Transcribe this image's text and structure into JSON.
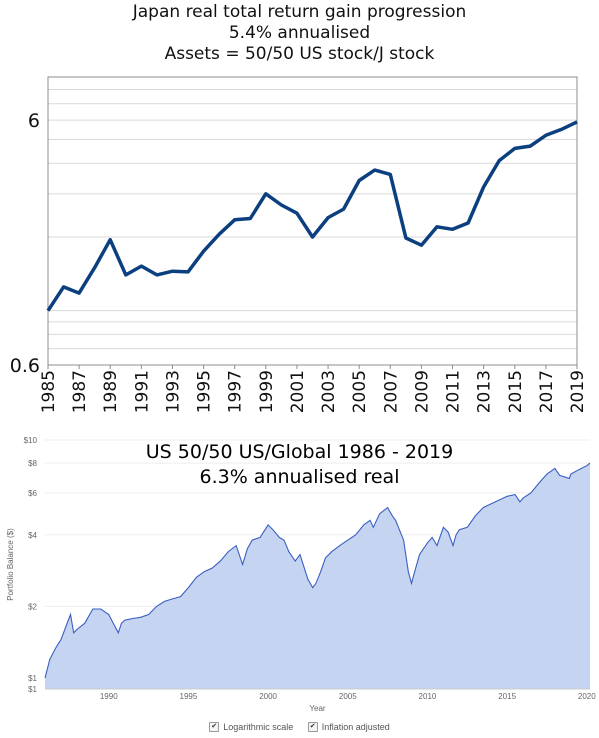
{
  "chart_data": [
    {
      "type": "line",
      "title": "Japan real total return gain progression",
      "subtitle_lines": [
        "5.4% annualised",
        "Assets = 50/50 US stock/J stock"
      ],
      "yscale": "log",
      "ylim": [
        0.6,
        9.0
      ],
      "y_tick_labels": [
        "6",
        "0.6"
      ],
      "y_ticks": [
        6,
        0.6
      ],
      "x_tick_labels": [
        "1985",
        "1987",
        "1989",
        "1991",
        "1993",
        "1995",
        "1997",
        "1999",
        "2001",
        "2003",
        "2005",
        "2007",
        "2009",
        "2011",
        "2013",
        "2015",
        "2017",
        "2019"
      ],
      "grid": true,
      "line_color": "#0b3f7f",
      "x": [
        1985,
        1986,
        1987,
        1988,
        1989,
        1990,
        1991,
        1992,
        1993,
        1994,
        1995,
        1996,
        1997,
        1998,
        1999,
        2000,
        2001,
        2002,
        2003,
        2004,
        2005,
        2006,
        2007,
        2008,
        2009,
        2010,
        2011,
        2012,
        2013,
        2014,
        2015,
        2016,
        2017,
        2018,
        2019
      ],
      "values": [
        1.0,
        1.25,
        1.18,
        1.5,
        1.95,
        1.4,
        1.52,
        1.4,
        1.45,
        1.44,
        1.75,
        2.05,
        2.35,
        2.38,
        3.0,
        2.7,
        2.5,
        2.0,
        2.4,
        2.6,
        3.4,
        3.75,
        3.6,
        1.98,
        1.85,
        2.2,
        2.15,
        2.28,
        3.2,
        4.1,
        4.6,
        4.7,
        5.2,
        5.5,
        5.9
      ]
    },
    {
      "type": "area",
      "title": "US 50/50 US/Global 1986 - 2019",
      "subtitle": "6.3% annualised real",
      "ylabel": "Portfolio Balance ($)",
      "xlabel": "Year",
      "yscale": "log",
      "ylim": [
        0.9,
        10
      ],
      "y_tick_labels": [
        "$10",
        "$8",
        "$6",
        "$4",
        "$2",
        "$1",
        "$1"
      ],
      "y_ticks": [
        10,
        8,
        6,
        4,
        2,
        1,
        0.9
      ],
      "x_tick_labels": [
        "1990",
        "1995",
        "2000",
        "2005",
        "2010",
        "2015",
        "2020"
      ],
      "x_ticks": [
        1990,
        1995,
        2000,
        2005,
        2010,
        2015,
        2020
      ],
      "xlim": [
        1986,
        2020.2
      ],
      "grid": true,
      "line_color": "#3b5fc0",
      "fill_color": "#c5d4f0",
      "x": [
        1986,
        1986.3,
        1986.7,
        1987,
        1987.6,
        1987.8,
        1988,
        1988.5,
        1989,
        1989.5,
        1990,
        1990.6,
        1990.8,
        1991,
        1991.5,
        1992,
        1992.5,
        1993,
        1993.5,
        1994,
        1994.5,
        1995,
        1995.5,
        1996,
        1996.5,
        1997,
        1997.5,
        1998,
        1998.4,
        1998.7,
        1999,
        1999.5,
        2000,
        2000.3,
        2000.7,
        2001,
        2001.3,
        2001.7,
        2002,
        2002.5,
        2002.8,
        2003,
        2003.3,
        2003.6,
        2004,
        2004.5,
        2005,
        2005.5,
        2006,
        2006.4,
        2006.6,
        2007,
        2007.5,
        2007.8,
        2008,
        2008.5,
        2008.8,
        2009,
        2009.2,
        2009.5,
        2010,
        2010.3,
        2010.6,
        2011,
        2011.3,
        2011.6,
        2011.8,
        2012,
        2012.5,
        2013,
        2013.5,
        2014,
        2014.5,
        2015,
        2015.5,
        2015.8,
        2016,
        2016.5,
        2017,
        2017.5,
        2018,
        2018.3,
        2018.9,
        2019,
        2019.5,
        2020,
        2020.2
      ],
      "values": [
        1.0,
        1.2,
        1.35,
        1.45,
        1.85,
        1.55,
        1.6,
        1.7,
        1.95,
        1.95,
        1.85,
        1.55,
        1.7,
        1.75,
        1.78,
        1.8,
        1.85,
        2.0,
        2.1,
        2.15,
        2.2,
        2.4,
        2.65,
        2.8,
        2.9,
        3.1,
        3.4,
        3.6,
        3.0,
        3.5,
        3.8,
        3.9,
        4.4,
        4.2,
        3.9,
        3.8,
        3.4,
        3.1,
        3.3,
        2.6,
        2.4,
        2.5,
        2.8,
        3.2,
        3.4,
        3.6,
        3.8,
        4.0,
        4.4,
        4.6,
        4.3,
        4.9,
        5.2,
        4.8,
        4.6,
        3.8,
        2.8,
        2.5,
        2.8,
        3.3,
        3.7,
        3.9,
        3.6,
        4.3,
        4.1,
        3.6,
        4.0,
        4.2,
        4.3,
        4.8,
        5.2,
        5.4,
        5.6,
        5.8,
        5.9,
        5.5,
        5.7,
        6.0,
        6.6,
        7.2,
        7.6,
        7.1,
        6.9,
        7.2,
        7.5,
        7.8,
        8.0
      ]
    }
  ],
  "controls": {
    "log_scale": {
      "label": "Logarithmic scale",
      "checked": true
    },
    "inflation": {
      "label": "Inflation adjusted",
      "checked": true
    },
    "check_glyph": "✔"
  }
}
